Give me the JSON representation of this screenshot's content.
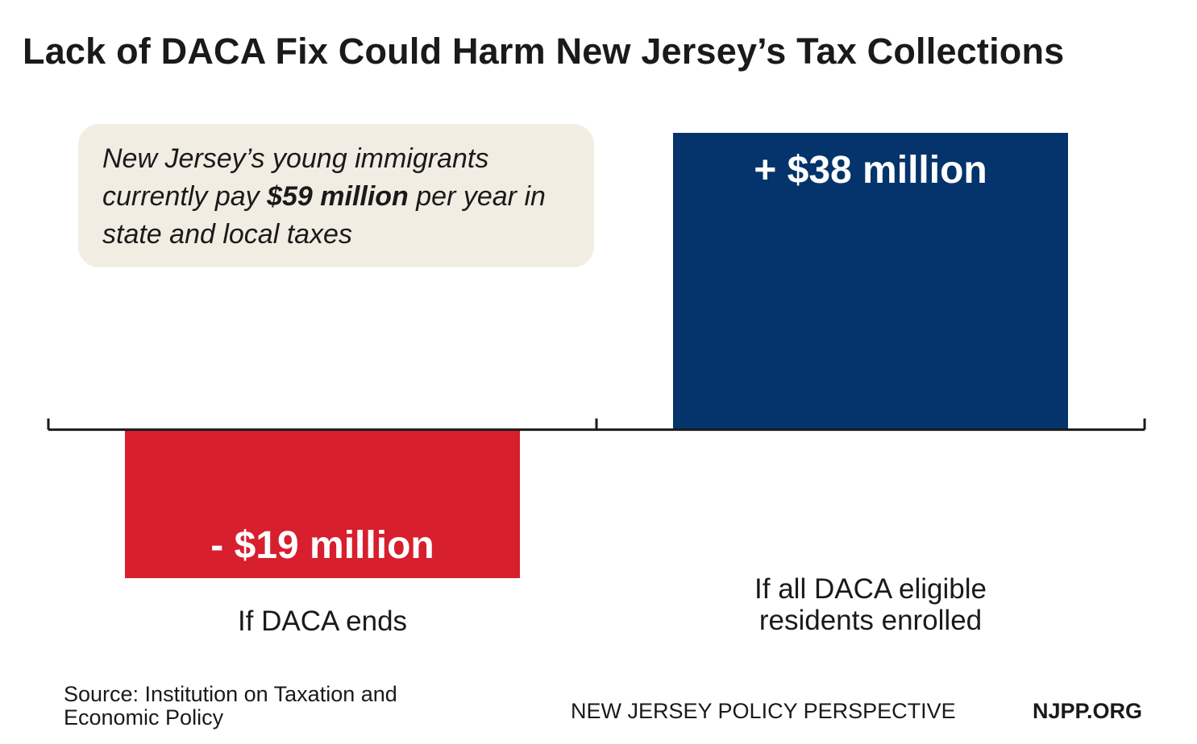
{
  "title": "Lack of DACA Fix Could Harm New Jersey’s Tax Collections",
  "callout": {
    "before": "New Jersey’s young immigrants currently pay ",
    "bold": "$59 million",
    "after": " per year in state and local taxes"
  },
  "chart_data": {
    "type": "bar",
    "categories": [
      "If DACA ends",
      "If all DACA eligible residents enrolled"
    ],
    "values": [
      -19,
      38
    ],
    "unit": "million",
    "data_labels": [
      "- $19 million",
      "+ $38 million"
    ],
    "colors": [
      "#d71f2e",
      "#04346b"
    ],
    "ylim": [
      -19,
      38
    ],
    "grid": false,
    "legend": "none"
  },
  "source": "Source: Institution on Taxation and Economic Policy",
  "org": "NEW JERSEY POLICY PERSPECTIVE",
  "site": "NJPP.ORG"
}
